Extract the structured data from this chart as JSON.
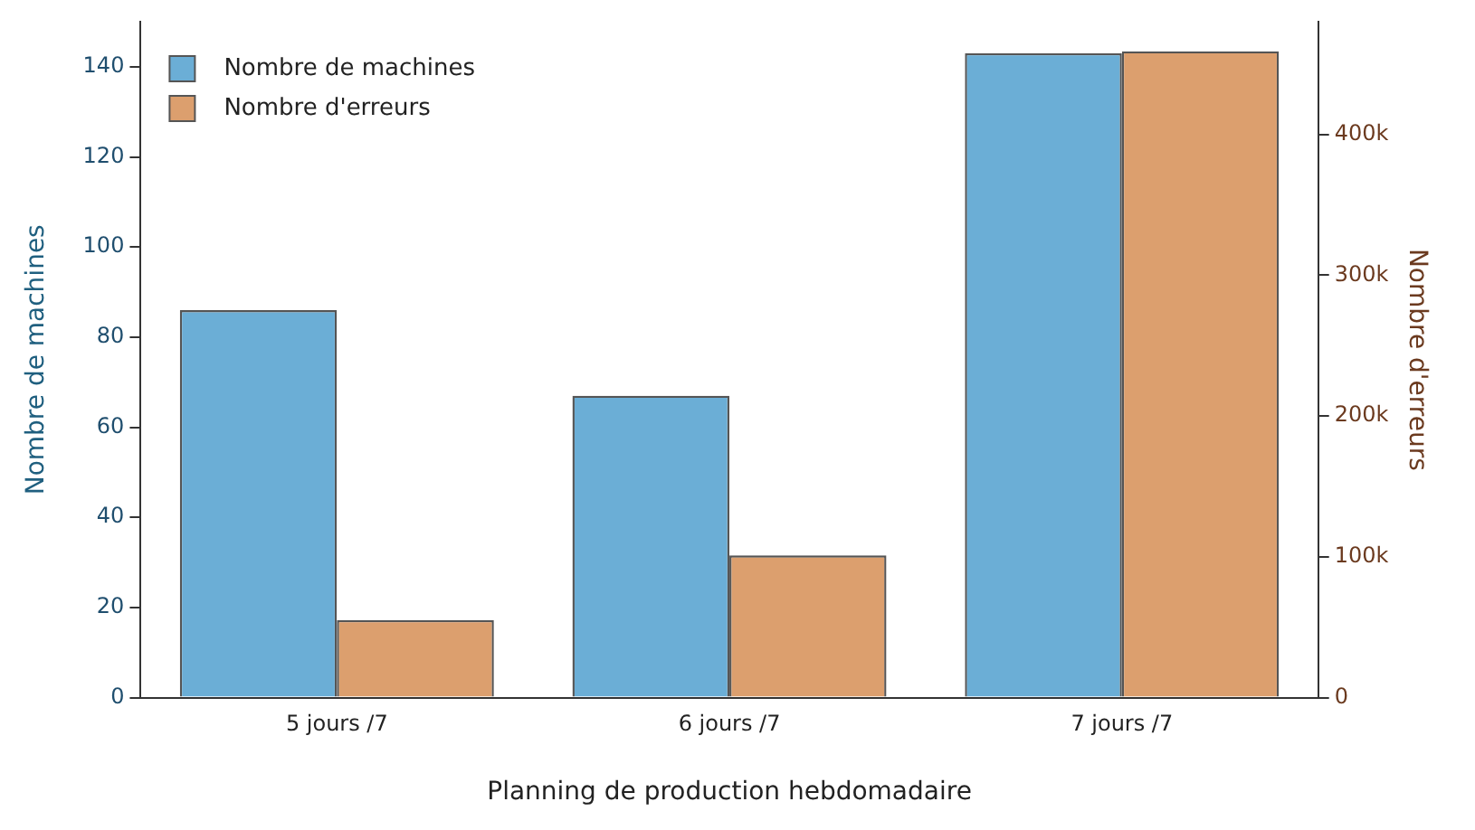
{
  "chart_data": {
    "type": "bar",
    "xlabel": "Planning de production hebdomadaire",
    "ylabel": "Nombre de machines",
    "y2label": "Nombre d'erreurs",
    "categories": [
      "5 jours /7",
      "6 jours /7",
      "7 jours /7"
    ],
    "series": [
      {
        "name": "Nombre de machines",
        "color": "#6baed6",
        "values": [
          86,
          67,
          143
        ]
      },
      {
        "name": "Nombre d'erreurs",
        "color": "#dc9f6e",
        "values": [
          55000,
          101000,
          459000
        ],
        "axis": "y2"
      }
    ],
    "ylim": [
      0,
      150
    ],
    "yticks": [
      0,
      20,
      40,
      60,
      80,
      100,
      120,
      140
    ],
    "y2lim": [
      0,
      480000
    ],
    "y2ticks": [
      0,
      {
        "value": 100000,
        "label": "100k"
      },
      {
        "value": 200000,
        "label": "200k"
      },
      {
        "value": 300000,
        "label": "300k"
      },
      {
        "value": 400000,
        "label": "400k"
      }
    ],
    "grid": false,
    "legend": "top left"
  }
}
